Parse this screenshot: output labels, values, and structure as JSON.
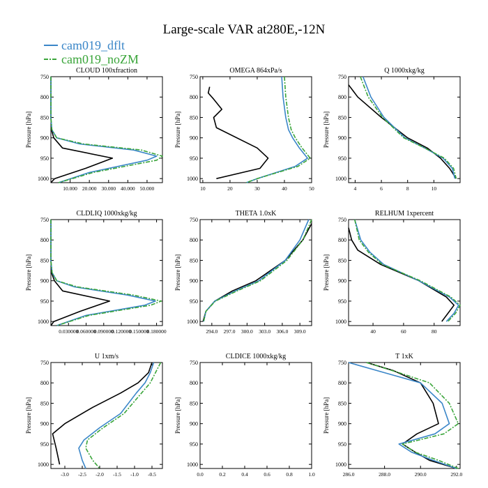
{
  "figure": {
    "title": "Large-scale VAR at280E,-12N",
    "legend": [
      {
        "label": "cam019_dflt",
        "color": "#3a86c8",
        "dash": false
      },
      {
        "label": "cam019_noZM",
        "color": "#3aa53a",
        "dash": true
      }
    ],
    "ref_color": "#000000"
  },
  "chart_data": [
    {
      "type": "line",
      "title": "CLOUD  100xfraction",
      "ylabel": "Pressure [hPa]",
      "ylim": [
        1010,
        750
      ],
      "yticks": [
        750,
        800,
        850,
        900,
        950,
        1000
      ],
      "xlim": [
        0,
        58000
      ],
      "xticks": [
        10000,
        20000,
        30000,
        40000,
        50000
      ],
      "xticklabels": [
        "10.000",
        "20.000",
        "30.000",
        "40.000",
        "50.000"
      ],
      "series": [
        {
          "role": "ref",
          "x": [
            0,
            0,
            0,
            300,
            1500,
            6000,
            32000,
            18000,
            2000,
            0
          ],
          "y": [
            750,
            800,
            850,
            880,
            900,
            925,
            950,
            975,
            1000,
            1010
          ]
        },
        {
          "role": "s1",
          "name": "cam019_dflt",
          "x": [
            0,
            0,
            0,
            500,
            3000,
            15000,
            43000,
            55000,
            50000,
            20000,
            4000
          ],
          "y": [
            750,
            800,
            850,
            880,
            900,
            915,
            930,
            945,
            955,
            985,
            1010
          ]
        },
        {
          "role": "s2",
          "name": "cam019_noZM",
          "x": [
            0,
            0,
            0,
            500,
            3000,
            17000,
            47000,
            58000,
            55000,
            22000,
            4000
          ],
          "y": [
            750,
            800,
            850,
            880,
            900,
            915,
            930,
            945,
            955,
            985,
            1010
          ]
        }
      ]
    },
    {
      "type": "line",
      "title": "OMEGA  864xPa/s",
      "ylabel": "Pressure [hPa]",
      "ylim": [
        1010,
        750
      ],
      "yticks": [
        750,
        800,
        850,
        900,
        950,
        1000
      ],
      "xlim": [
        9,
        50
      ],
      "xticks": [
        10,
        20,
        30,
        40,
        50
      ],
      "xticklabels": [
        "10",
        "20",
        "30",
        "40",
        "50"
      ],
      "series": [
        {
          "role": "ref",
          "x": [
            12.5,
            12,
            14,
            17,
            14,
            15,
            30,
            34,
            31,
            15
          ],
          "y": [
            775,
            790,
            805,
            830,
            850,
            875,
            925,
            950,
            975,
            1000
          ]
        },
        {
          "role": "s1",
          "name": "cam019_dflt",
          "x": [
            39,
            39.5,
            40.5,
            41.5,
            43,
            45.5,
            48.5,
            44,
            30,
            26
          ],
          "y": [
            750,
            800,
            850,
            880,
            900,
            925,
            950,
            970,
            1000,
            1010
          ]
        },
        {
          "role": "s2",
          "name": "cam019_noZM",
          "x": [
            40,
            40.5,
            41.5,
            42.5,
            44,
            46.5,
            49.5,
            45,
            30,
            26
          ],
          "y": [
            750,
            800,
            850,
            880,
            900,
            925,
            950,
            970,
            1000,
            1010
          ]
        }
      ]
    },
    {
      "type": "line",
      "title": "Q  1000xkg/kg",
      "ylabel": "Pressure [hPa]",
      "ylim": [
        1010,
        750
      ],
      "yticks": [
        750,
        800,
        850,
        900,
        950,
        1000
      ],
      "xlim": [
        3.5,
        12
      ],
      "xticks": [
        4,
        6,
        8,
        10
      ],
      "xticklabels": [
        "4",
        "6",
        "8",
        "10"
      ],
      "series": [
        {
          "role": "ref",
          "x": [
            3.5,
            4.2,
            6,
            8,
            9.5,
            10.5,
            11.2,
            11.7
          ],
          "y": [
            770,
            800,
            850,
            900,
            925,
            950,
            975,
            1000
          ]
        },
        {
          "role": "s1",
          "name": "cam019_dflt",
          "x": [
            4.6,
            5.2,
            6.2,
            7.8,
            9.3,
            10.7,
            11.4,
            11.6
          ],
          "y": [
            750,
            800,
            850,
            900,
            925,
            950,
            975,
            1000
          ]
        },
        {
          "role": "s2",
          "name": "cam019_noZM",
          "x": [
            4.4,
            5.0,
            6.1,
            7.7,
            9.3,
            10.8,
            11.5,
            11.7
          ],
          "y": [
            750,
            800,
            850,
            900,
            925,
            950,
            975,
            1000
          ]
        }
      ]
    },
    {
      "type": "line",
      "title": "CLDLIQ  1000xkg/kg",
      "ylabel": "Pressure [hPa]",
      "ylim": [
        1010,
        750
      ],
      "yticks": [
        750,
        800,
        850,
        900,
        950,
        1000
      ],
      "xlim": [
        0,
        0.19
      ],
      "xticks": [
        0.03,
        0.06,
        0.09,
        0.12,
        0.15,
        0.18
      ],
      "xticklabels": [
        "0.030000",
        "0.060000",
        "0.090000",
        "0.120000",
        "0.150000",
        "0.180000"
      ],
      "series": [
        {
          "role": "ref",
          "x": [
            0,
            0,
            0,
            0.001,
            0.006,
            0.02,
            0.1,
            0.05,
            0.005,
            0
          ],
          "y": [
            750,
            800,
            850,
            880,
            900,
            925,
            950,
            975,
            1000,
            1010
          ]
        },
        {
          "role": "s1",
          "name": "cam019_dflt",
          "x": [
            0,
            0,
            0,
            0.002,
            0.01,
            0.04,
            0.13,
            0.178,
            0.16,
            0.06,
            0.01
          ],
          "y": [
            750,
            800,
            850,
            880,
            900,
            915,
            935,
            950,
            960,
            985,
            1010
          ]
        },
        {
          "role": "s2",
          "name": "cam019_noZM",
          "x": [
            0,
            0,
            0,
            0.002,
            0.01,
            0.045,
            0.14,
            0.188,
            0.17,
            0.065,
            0.01
          ],
          "y": [
            750,
            800,
            850,
            880,
            900,
            915,
            935,
            950,
            960,
            985,
            1010
          ]
        }
      ]
    },
    {
      "type": "line",
      "title": "THETA  1.0xK",
      "ylabel": "Pressure [hPa]",
      "ylim": [
        1010,
        750
      ],
      "yticks": [
        750,
        800,
        850,
        900,
        950,
        1000
      ],
      "xlim": [
        292,
        311
      ],
      "xticks": [
        294,
        297,
        300,
        303,
        306,
        309
      ],
      "xticklabels": [
        "294.0",
        "297.0",
        "300.0",
        "303.0",
        "306.0",
        "309.0"
      ],
      "series": [
        {
          "role": "ref",
          "x": [
            311,
            309.5,
            306.5,
            301.5,
            297.5,
            294.5,
            293,
            292.5
          ],
          "y": [
            760,
            800,
            850,
            900,
            925,
            950,
            975,
            1000
          ]
        },
        {
          "role": "s1",
          "name": "cam019_dflt",
          "x": [
            310.5,
            309,
            306.5,
            302,
            298,
            294.5,
            293,
            292.6
          ],
          "y": [
            750,
            800,
            850,
            900,
            925,
            950,
            975,
            1000
          ]
        },
        {
          "role": "s2",
          "name": "cam019_noZM",
          "x": [
            311,
            309.5,
            306.8,
            302.3,
            298.3,
            294.6,
            293,
            292.6
          ],
          "y": [
            750,
            800,
            850,
            900,
            925,
            950,
            975,
            1000
          ]
        }
      ]
    },
    {
      "type": "line",
      "title": "RELHUM  1xpercent",
      "ylabel": "Pressure [hPa]",
      "ylim": [
        1010,
        750
      ],
      "yticks": [
        750,
        800,
        850,
        900,
        950,
        1000
      ],
      "xlim": [
        24,
        97
      ],
      "xticks": [
        40,
        60,
        80
      ],
      "xticklabels": [
        "40",
        "60",
        "80"
      ],
      "series": [
        {
          "role": "ref",
          "x": [
            24,
            26,
            30,
            45,
            70,
            88,
            93,
            89,
            85
          ],
          "y": [
            770,
            800,
            825,
            860,
            900,
            940,
            960,
            980,
            1000
          ]
        },
        {
          "role": "s1",
          "name": "cam019_dflt",
          "x": [
            28,
            32,
            38,
            47,
            70,
            90,
            96,
            93,
            88
          ],
          "y": [
            750,
            800,
            830,
            860,
            900,
            940,
            960,
            980,
            1000
          ]
        },
        {
          "role": "s2",
          "name": "cam019_noZM",
          "x": [
            28,
            31,
            37,
            46,
            71,
            91,
            97,
            94,
            89
          ],
          "y": [
            750,
            800,
            830,
            860,
            900,
            940,
            960,
            980,
            1000
          ]
        }
      ]
    },
    {
      "type": "line",
      "title": "U  1xm/s",
      "ylabel": "Pressure [hPa]",
      "ylim": [
        1010,
        750
      ],
      "yticks": [
        750,
        800,
        850,
        900,
        950,
        1000
      ],
      "xlim": [
        -3.4,
        -0.2
      ],
      "xticks": [
        -3.0,
        -2.5,
        -2.0,
        -1.5,
        -1.0,
        -0.5
      ],
      "xticklabels": [
        "-3.0",
        "-2.5",
        "-2.0",
        "-1.5",
        "-1.0",
        "-0.5"
      ],
      "series": [
        {
          "role": "ref",
          "x": [
            -0.5,
            -0.6,
            -0.9,
            -1.4,
            -2.2,
            -3.0,
            -3.35,
            -3.25,
            -3.15
          ],
          "y": [
            750,
            775,
            800,
            825,
            860,
            900,
            925,
            960,
            1000
          ]
        },
        {
          "role": "s1",
          "name": "cam019_dflt",
          "x": [
            -0.45,
            -0.55,
            -0.7,
            -0.95,
            -1.4,
            -2.0,
            -2.45,
            -2.6,
            -2.5,
            -2.4
          ],
          "y": [
            750,
            775,
            800,
            825,
            875,
            910,
            940,
            960,
            990,
            1010
          ]
        },
        {
          "role": "s2",
          "name": "cam019_noZM",
          "x": [
            -0.25,
            -0.4,
            -0.55,
            -0.8,
            -1.3,
            -1.9,
            -2.35,
            -2.4,
            -2.2,
            -2.0
          ],
          "y": [
            750,
            775,
            800,
            825,
            875,
            910,
            940,
            960,
            990,
            1010
          ]
        }
      ]
    },
    {
      "type": "line",
      "title": "CLDICE  1000xkg/kg",
      "ylabel": "Pressure [hPa]",
      "ylim": [
        1010,
        750
      ],
      "yticks": [
        750,
        800,
        850,
        900,
        950,
        1000
      ],
      "xlim": [
        0,
        1
      ],
      "xticks": [
        0.0,
        0.2,
        0.4,
        0.6,
        0.8,
        1.0
      ],
      "xticklabels": [
        "0.0",
        "0.2",
        "0.4",
        "0.6",
        "0.8",
        "1.0"
      ],
      "series": []
    },
    {
      "type": "line",
      "title": "T  1xK",
      "ylabel": "Pressure [hPa]",
      "ylim": [
        1010,
        750
      ],
      "yticks": [
        750,
        800,
        850,
        900,
        950,
        1000
      ],
      "xlim": [
        286,
        292.2
      ],
      "xticks": [
        286,
        288,
        290,
        292
      ],
      "xticklabels": [
        "286.0",
        "288.0",
        "290.0",
        "292.0"
      ],
      "series": [
        {
          "role": "ref",
          "x": [
            287,
            288.5,
            290,
            290.7,
            291,
            289.8,
            289,
            289.7,
            290.5,
            292
          ],
          "y": [
            750,
            770,
            800,
            850,
            900,
            925,
            950,
            970,
            990,
            1010
          ]
        },
        {
          "role": "s1",
          "name": "cam019_dflt",
          "x": [
            286,
            288,
            290,
            291.2,
            291.6,
            290.8,
            288.8,
            289.5,
            290.7,
            292
          ],
          "y": [
            750,
            775,
            800,
            850,
            900,
            925,
            950,
            970,
            990,
            1010
          ]
        },
        {
          "role": "s2",
          "name": "cam019_noZM",
          "x": [
            287,
            288.8,
            290.5,
            291.6,
            292.1,
            291.3,
            289,
            289.7,
            291,
            292.1
          ],
          "y": [
            750,
            775,
            800,
            850,
            900,
            925,
            950,
            970,
            990,
            1010
          ]
        }
      ]
    }
  ]
}
